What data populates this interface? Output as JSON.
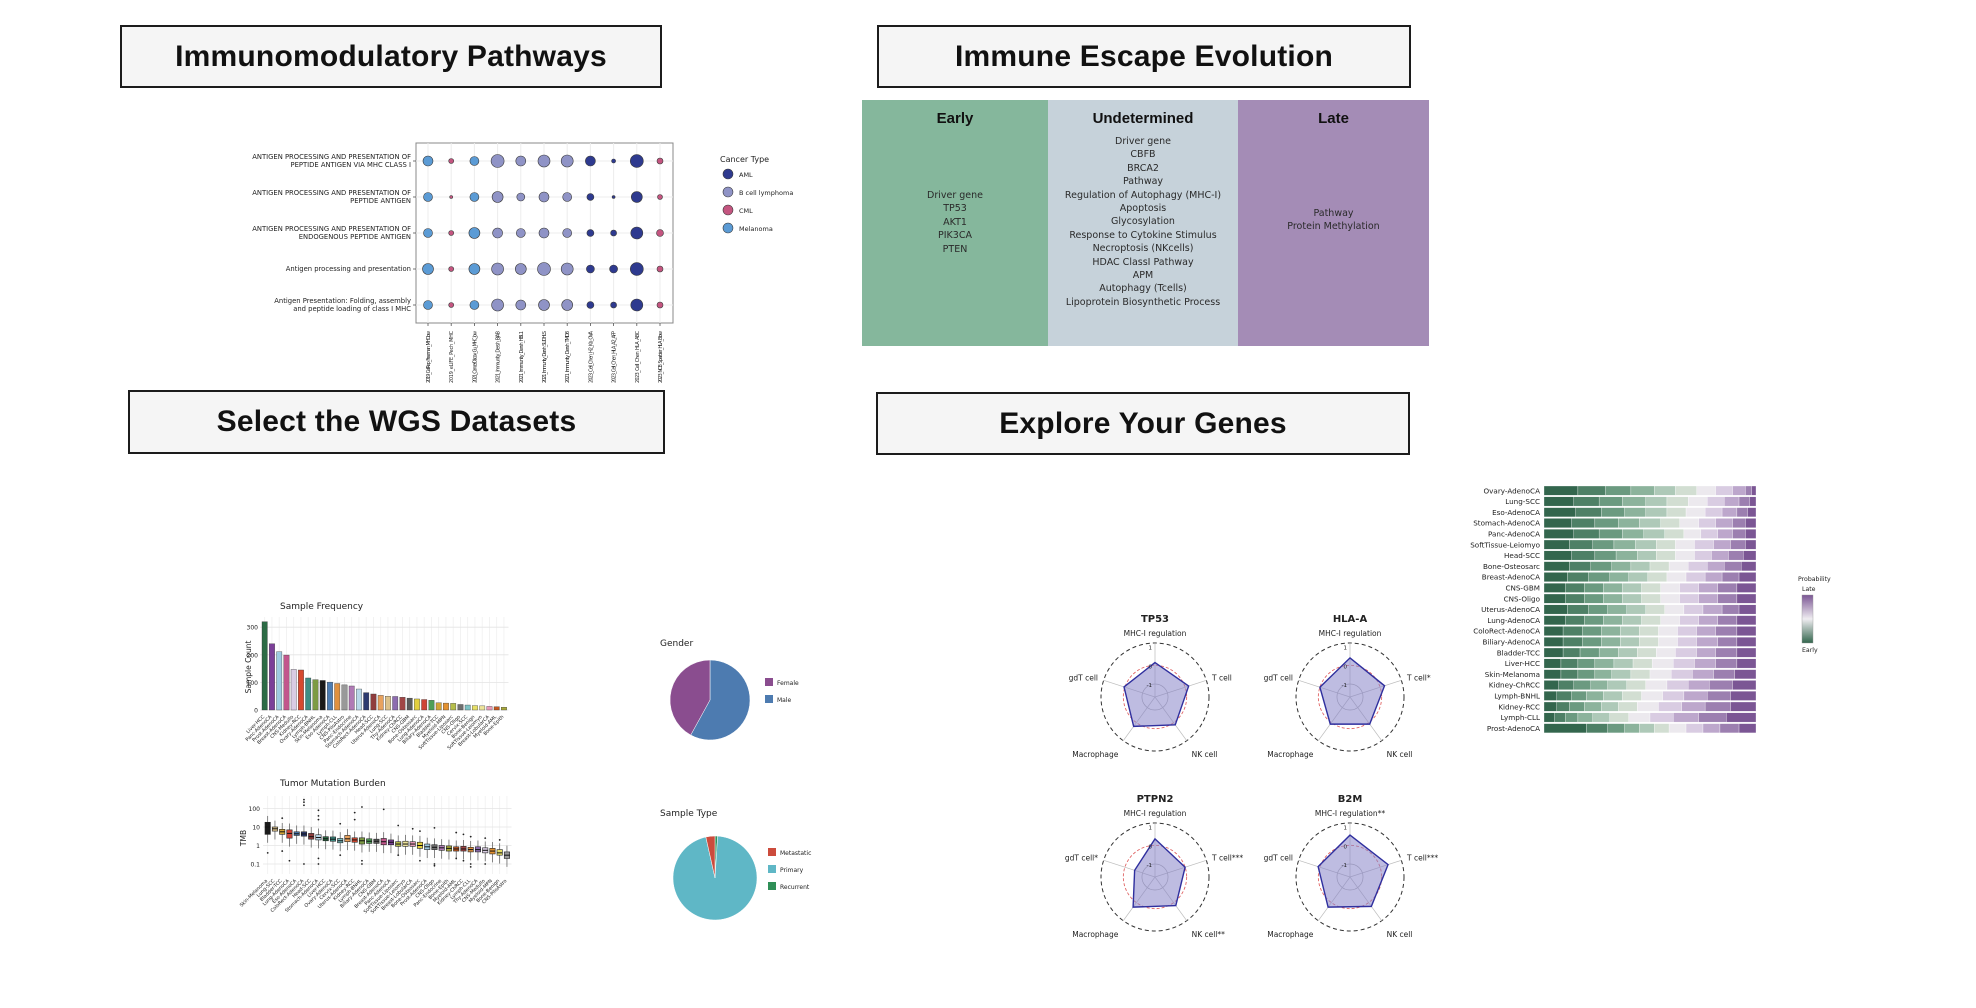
{
  "titles": {
    "pathways": "Immunomodulatory Pathways",
    "evolution": "Immune Escape Evolution",
    "datasets": "Select the WGS Datasets",
    "genes": "Explore Your Genes"
  },
  "evolution": {
    "columns": [
      {
        "title": "Early",
        "bg": "#85b79c",
        "items": [
          "Driver gene",
          "TP53",
          "AKT1",
          "PIK3CA",
          "PTEN"
        ],
        "list_offset": 62
      },
      {
        "title": "Undetermined",
        "bg": "#c6d2da",
        "items": [
          "Driver gene",
          "CBFB",
          "BRCA2",
          "Pathway",
          "Regulation of Autophagy (MHC-I)",
          "Apoptosis",
          "Glycosylation",
          "Response to Cytokine Stimulus",
          "Necroptosis (NKcells)",
          "HDAC ClassI Pathway",
          "APM",
          "Autophagy (Tcells)",
          "Lipoprotein Biosynthetic Process"
        ],
        "list_offset": 8
      },
      {
        "title": "Late",
        "bg": "#a48cb6",
        "items": [
          "Pathway",
          "Protein Methylation"
        ],
        "list_offset": 80
      }
    ]
  },
  "chart_data": [
    {
      "id": "immuno_dotplot",
      "type": "scatter",
      "title": "",
      "pathway_lines": [
        [
          "ANTIGEN PROCESSING AND PRESENTATION OF",
          "PEPTIDE ANTIGEN VIA MHC CLASS I"
        ],
        [
          "ANTIGEN PROCESSING AND PRESENTATION OF",
          "PEPTIDE ANTIGEN"
        ],
        [
          "ANTIGEN PROCESSING AND PRESENTATION OF",
          "ENDOGENOUS PEPTIDE ANTIGEN"
        ],
        [
          "Antigen processing and presentation"
        ],
        [
          "Antigen Presentation: Folding, assembly",
          "and peptide loading of class I MHC"
        ]
      ],
      "datasets": [
        "2019_CellRep_Freeman_MHClow",
        "2019_eLIFE_Pech_MHC",
        "2021_CancerDiscov_Gu_MHC_low",
        "2021_Immunity_Dersh_BJAB",
        "2021_Immunity_Dersh_HBL1",
        "2021_Immunity_Dersh_SUDHLS",
        "2021_Immunity_Dersh_TMD8",
        "2023_Cell_Chen_H2_Kb_OVA",
        "2023_Cell_Chen_HLA_A2_AFP",
        "2023_Cell_Chen_HLA_ABC",
        "2023_NCB_Sparbier_HLA_Blow"
      ],
      "column_cancer_type": [
        "Melanoma",
        "CML",
        "Melanoma",
        "B cell lymphoma",
        "B cell lymphoma",
        "B cell lymphoma",
        "B cell lymphoma",
        "AML",
        "AML",
        "AML",
        "CML"
      ],
      "legend_title": "Cancer Type",
      "legend": [
        {
          "label": "AML",
          "color": "#2e3a8f"
        },
        {
          "label": "B cell lymphoma",
          "color": "#8f93c6"
        },
        {
          "label": "CML",
          "color": "#c45580"
        },
        {
          "label": "Melanoma",
          "color": "#5b9bd5"
        }
      ],
      "dot_sizes": [
        [
          5,
          2.5,
          4.5,
          6.5,
          5,
          6,
          6,
          5,
          2,
          6.5,
          3
        ],
        [
          4.5,
          1.5,
          4.5,
          5.5,
          4,
          5,
          4.5,
          3.5,
          1.5,
          5.5,
          2.5
        ],
        [
          4.5,
          2.5,
          5.5,
          5,
          4.5,
          5,
          4.5,
          3.5,
          3,
          6,
          3.5
        ],
        [
          5.5,
          2.5,
          5.5,
          6,
          5.5,
          6.5,
          6,
          4,
          4,
          6.5,
          3
        ],
        [
          4.5,
          2.5,
          4.5,
          6,
          5,
          5.5,
          5.5,
          3.5,
          3,
          6,
          3
        ]
      ]
    },
    {
      "id": "sample_frequency",
      "type": "bar",
      "title": "Sample Frequency",
      "ylabel": "Sample Count",
      "yticks": [
        "0",
        "100",
        "200",
        "300"
      ],
      "ylim": [
        0,
        340
      ],
      "categories": [
        "Liver-HCC",
        "Panc-AdenoCA",
        "Prost-AdenoCA",
        "Breast-AdenoCA",
        "CNS-Medullo",
        "Kidney-RCC",
        "Ovary-AdenoCA",
        "Lymph-BNHL",
        "Skin-Melanoma",
        "Eso-AdenoCA",
        "Lymph-CLL",
        "CNS-PiloAstro",
        "Panc-Endocrine",
        "Stomach-AdenoCA",
        "ColoRect-AdenoCA",
        "Head-SCC",
        "Uterus-AdenoCA",
        "Lung-SCC",
        "Thy-AdenoCA",
        "Kidney-ChRCC",
        "CNS-GBM",
        "Bone-Osteosarc",
        "Lung-AdenoCA",
        "Biliary-AdenoCA",
        "Bladder-TCC",
        "Myeloid-MPN",
        "SoftTissue-Liposarc",
        "CNS-Oligo",
        "Cervix-SCC",
        "Bone-Benign",
        "SoftTissue-Leiomyo",
        "Breast-LobularCA",
        "Myeloid-AML",
        "Bone-Epith"
      ],
      "values": [
        320,
        240,
        211,
        199,
        147,
        145,
        116,
        110,
        107,
        101,
        96,
        91,
        87,
        76,
        63,
        58,
        53,
        50,
        49,
        46,
        43,
        40,
        38,
        35,
        26,
        25,
        24,
        20,
        18,
        16,
        15,
        13,
        12,
        10
      ],
      "colors": [
        "#2c6b45",
        "#7b3f98",
        "#9ecae1",
        "#c2568c",
        "#d9cce3",
        "#d6492f",
        "#3e8e85",
        "#7d9b44",
        "#1a1a1a",
        "#4d7db3",
        "#e0913f",
        "#999999",
        "#b07ab5",
        "#b9d8ea",
        "#2c3a70",
        "#8f3d3d",
        "#e8a25e",
        "#ddc28a",
        "#8d6cb0",
        "#a04545",
        "#5b5b5b",
        "#e3cf3e",
        "#cf4436",
        "#4d9e56",
        "#d1a437",
        "#e39130",
        "#b5bd4a",
        "#6e6e6e",
        "#7cc2c4",
        "#e6df66",
        "#ece39a",
        "#e89ab8",
        "#c2571f",
        "#a8a838"
      ]
    },
    {
      "id": "gender_pie",
      "type": "pie",
      "title": "Gender",
      "slices": [
        {
          "label": "Male",
          "value": 58,
          "color": "#4d7bb0"
        },
        {
          "label": "Female",
          "value": 42,
          "color": "#8a4d8f"
        }
      ],
      "legend_order": [
        "Female",
        "Male"
      ]
    },
    {
      "id": "tmb_boxplot",
      "type": "box",
      "title": "Tumor Mutation Burden",
      "ylabel": "TMB",
      "yticks": [
        "100",
        "10",
        "1",
        "0.1"
      ],
      "scale": "log10",
      "categories": [
        "Skin-Melanoma",
        "Lung-SCC",
        "Bladder-TCC",
        "Lung-AdenoCA",
        "Eso-AdenoCA",
        "ColoRect-AdenoCA",
        "Head-SCC",
        "Stomach-AdenoCA",
        "Liver-HCC",
        "Ovary-AdenoCA",
        "Cervix-SCC",
        "Uterus-AdenoCA",
        "Kidney-RCC",
        "Lymph-BNHL",
        "Biliary-AdenoCA",
        "CNS-GBM",
        "Breast-AdenoCA",
        "Panc-AdenoCA",
        "SoftTissue-Liposarc",
        "SoftTissue-Leiomyo",
        "Breast-LobularCA",
        "Bone-Osteosarc",
        "Prost-AdenoCA",
        "CNS-Oligo",
        "Panc-Endocrine",
        "Bone-Epith",
        "Myeloid-AML",
        "Kidney-ChRCC",
        "Lymph-CLL",
        "Thy-AdenoCA",
        "CNS-Medullo",
        "Myeloid-MPN",
        "Bone-Benign",
        "CNS-PiloAstro"
      ],
      "boxes": [
        [
          4,
          10,
          18
        ],
        [
          6,
          8,
          10
        ],
        [
          4,
          5.5,
          7.5
        ],
        [
          2.5,
          4.5,
          7
        ],
        [
          3.5,
          4.3,
          5.5
        ],
        [
          3.2,
          4.2,
          5.5
        ],
        [
          2.2,
          3,
          4.5
        ],
        [
          2,
          2.7,
          3.8
        ],
        [
          1.8,
          2.3,
          3
        ],
        [
          1.7,
          2.2,
          2.9
        ],
        [
          1.4,
          1.8,
          2.4
        ],
        [
          1.6,
          2.3,
          3.5
        ],
        [
          1.5,
          2,
          2.6
        ],
        [
          1.2,
          1.8,
          2.6
        ],
        [
          1.3,
          1.7,
          2.3
        ],
        [
          1.3,
          1.7,
          2.2
        ],
        [
          1.1,
          1.6,
          2.4
        ],
        [
          1.1,
          1.5,
          2
        ],
        [
          0.9,
          1.2,
          1.6
        ],
        [
          0.9,
          1.2,
          1.7
        ],
        [
          0.9,
          1.2,
          1.6
        ],
        [
          0.7,
          1,
          1.5
        ],
        [
          0.6,
          0.85,
          1.2
        ],
        [
          0.6,
          0.8,
          1.1
        ],
        [
          0.55,
          0.75,
          1
        ],
        [
          0.5,
          0.7,
          0.95
        ],
        [
          0.5,
          0.65,
          0.85
        ],
        [
          0.5,
          0.65,
          0.9
        ],
        [
          0.45,
          0.6,
          0.8
        ],
        [
          0.45,
          0.6,
          0.85
        ],
        [
          0.4,
          0.55,
          0.75
        ],
        [
          0.35,
          0.5,
          0.7
        ],
        [
          0.3,
          0.4,
          0.6
        ],
        [
          0.2,
          0.3,
          0.45
        ]
      ],
      "outliers": [
        [
          0.4
        ],
        [],
        [
          30,
          0.5
        ],
        [
          0.15
        ],
        [],
        [
          150,
          220,
          300,
          0.1
        ],
        [],
        [
          80,
          40,
          25,
          0.2,
          0.1
        ],
        [],
        [],
        [
          15,
          0.3
        ],
        [],
        [
          60,
          25
        ],
        [
          120,
          0.15,
          0.1
        ],
        [],
        [],
        [
          90
        ],
        [],
        [
          12,
          0.3
        ],
        [],
        [
          8
        ],
        [
          0.15,
          6
        ],
        [],
        [
          9,
          0.1,
          0.08
        ],
        [],
        [],
        [
          5,
          0.2
        ],
        [
          4,
          0.15
        ],
        [
          3,
          0.1,
          0.07
        ],
        [],
        [
          2.5,
          0.1
        ],
        [],
        [
          2
        ],
        []
      ],
      "colors": [
        "#1a1a1a",
        "#ddc28a",
        "#d1a437",
        "#cf4436",
        "#4d7db3",
        "#2c3a70",
        "#8f3d3d",
        "#b9d8ea",
        "#2c6b45",
        "#3e8e85",
        "#7cc2c4",
        "#e8a25e",
        "#d6492f",
        "#7d9b44",
        "#4d9e56",
        "#5b5b5b",
        "#c2568c",
        "#7b3f98",
        "#b5bd4a",
        "#ece39a",
        "#e89ab8",
        "#e3cf3e",
        "#9ecae1",
        "#6e6e6e",
        "#b07ab5",
        "#a8a838",
        "#c2571f",
        "#a04545",
        "#e0913f",
        "#8d6cb0",
        "#d9cce3",
        "#e39130",
        "#e6df66",
        "#999999"
      ]
    },
    {
      "id": "sample_type_pie",
      "type": "pie",
      "title": "Sample Type",
      "slices": [
        {
          "label": "Recurrent",
          "value": 1,
          "color": "#2f8f57"
        },
        {
          "label": "Primary",
          "value": 95.5,
          "color": "#5fb7c6"
        },
        {
          "label": "Metastatic",
          "value": 3.5,
          "color": "#cc4b3c"
        }
      ],
      "legend_order": [
        "Metastatic",
        "Primary",
        "Recurrent"
      ]
    },
    {
      "id": "radars",
      "type": "radar",
      "tick_labels": [
        "1",
        "0",
        "-1"
      ],
      "fill_color": "#8885c9",
      "stroke_color": "#2f2f9e",
      "ref_circle_color": "#e06666",
      "genes": [
        {
          "title": "TP53",
          "axes": [
            "MHC-I regulation",
            "T cell",
            "NK cell",
            "Macrophage",
            "gdT cell"
          ],
          "values": [
            0.15,
            0.2,
            0.15,
            0.25,
            0.05
          ]
        },
        {
          "title": "HLA-A",
          "axes": [
            "MHC-I regulation",
            "T cell*",
            "NK cell",
            "Macrophage",
            "gdT cell"
          ],
          "values": [
            0.4,
            0.25,
            0.1,
            0.1,
            0.0
          ]
        },
        {
          "title": "PTPN2",
          "axes": [
            "MHC-I regulation",
            "T cell***",
            "NK cell**",
            "Macrophage",
            "gdT cell*"
          ],
          "values": [
            0.35,
            0.0,
            0.2,
            0.3,
            -0.55
          ]
        },
        {
          "title": "B2M",
          "axes": [
            "MHC-I regulation**",
            "T cell***",
            "NK cell",
            "Macrophage",
            "gdT cell"
          ],
          "values": [
            0.55,
            0.45,
            0.25,
            0.3,
            0.1
          ]
        }
      ]
    },
    {
      "id": "escape_probability_stacked",
      "type": "bar",
      "orientation": "horizontal-stacked",
      "legend_title": "Probability",
      "legend_top": "Late",
      "legend_bottom": "Early",
      "palette": [
        "#33664d",
        "#4e8066",
        "#6b9a80",
        "#8cb39c",
        "#aec9b8",
        "#d2ded2",
        "#ece9ee",
        "#d9cce2",
        "#bda7cc",
        "#9c7fb0",
        "#7b5694"
      ],
      "categories": [
        "Ovary-AdenoCA",
        "Lung-SCC",
        "Eso-AdenoCA",
        "Stomach-AdenoCA",
        "Panc-AdenoCA",
        "SoftTissue-Leiomyo",
        "Head-SCC",
        "Bone-Osteosarc",
        "Breast-AdenoCA",
        "CNS-GBM",
        "CNS-Oligo",
        "Uterus-AdenoCA",
        "Lung-AdenoCA",
        "ColoRect-AdenoCA",
        "Biliary-AdenoCA",
        "Bladder-TCC",
        "Liver-HCC",
        "Skin-Melanoma",
        "Kidney-ChRCC",
        "Lymph-BNHL",
        "Kidney-RCC",
        "Lymph-CLL",
        "Prost-AdenoCA"
      ],
      "segments": [
        [
          16,
          13,
          12,
          11,
          10,
          10,
          9,
          8,
          6,
          3,
          2
        ],
        [
          14,
          12,
          11,
          11,
          10,
          10,
          9,
          8,
          7,
          5,
          3
        ],
        [
          15,
          12,
          11,
          10,
          10,
          9,
          9,
          8,
          7,
          5,
          4
        ],
        [
          13,
          11,
          11,
          10,
          10,
          9,
          9,
          8,
          8,
          6,
          5
        ],
        [
          14,
          12,
          11,
          10,
          10,
          9,
          8,
          8,
          7,
          6,
          5
        ],
        [
          12,
          11,
          10,
          10,
          10,
          9,
          9,
          9,
          8,
          7,
          5
        ],
        [
          13,
          11,
          10,
          10,
          9,
          9,
          9,
          8,
          8,
          7,
          6
        ],
        [
          12,
          10,
          10,
          9,
          9,
          9,
          9,
          9,
          8,
          8,
          7
        ],
        [
          11,
          10,
          10,
          9,
          9,
          9,
          9,
          9,
          8,
          8,
          8
        ],
        [
          10,
          9,
          9,
          9,
          9,
          9,
          9,
          9,
          9,
          9,
          9
        ],
        [
          10,
          9,
          9,
          9,
          9,
          9,
          9,
          9,
          9,
          9,
          9
        ],
        [
          11,
          10,
          9,
          9,
          9,
          9,
          9,
          9,
          9,
          8,
          8
        ],
        [
          10,
          9,
          9,
          9,
          9,
          9,
          9,
          9,
          9,
          9,
          9
        ],
        [
          9,
          9,
          9,
          9,
          9,
          9,
          9,
          9,
          9,
          10,
          9
        ],
        [
          9,
          9,
          9,
          9,
          9,
          9,
          9,
          9,
          10,
          9,
          9
        ],
        [
          9,
          8,
          9,
          9,
          9,
          9,
          9,
          10,
          9,
          10,
          9
        ],
        [
          8,
          8,
          8,
          9,
          9,
          9,
          10,
          10,
          10,
          10,
          9
        ],
        [
          8,
          8,
          8,
          8,
          9,
          9,
          10,
          10,
          10,
          10,
          10
        ],
        [
          7,
          7,
          8,
          8,
          9,
          9,
          10,
          10,
          10,
          11,
          11
        ],
        [
          6,
          7,
          7,
          8,
          9,
          9,
          10,
          10,
          11,
          11,
          12
        ],
        [
          6,
          6,
          7,
          8,
          8,
          9,
          10,
          11,
          11,
          12,
          12
        ],
        [
          5,
          5,
          6,
          7,
          8,
          9,
          10,
          11,
          12,
          13,
          14
        ],
        [
          20,
          10,
          8,
          7,
          7,
          7,
          8,
          8,
          8,
          9,
          8
        ]
      ]
    }
  ]
}
